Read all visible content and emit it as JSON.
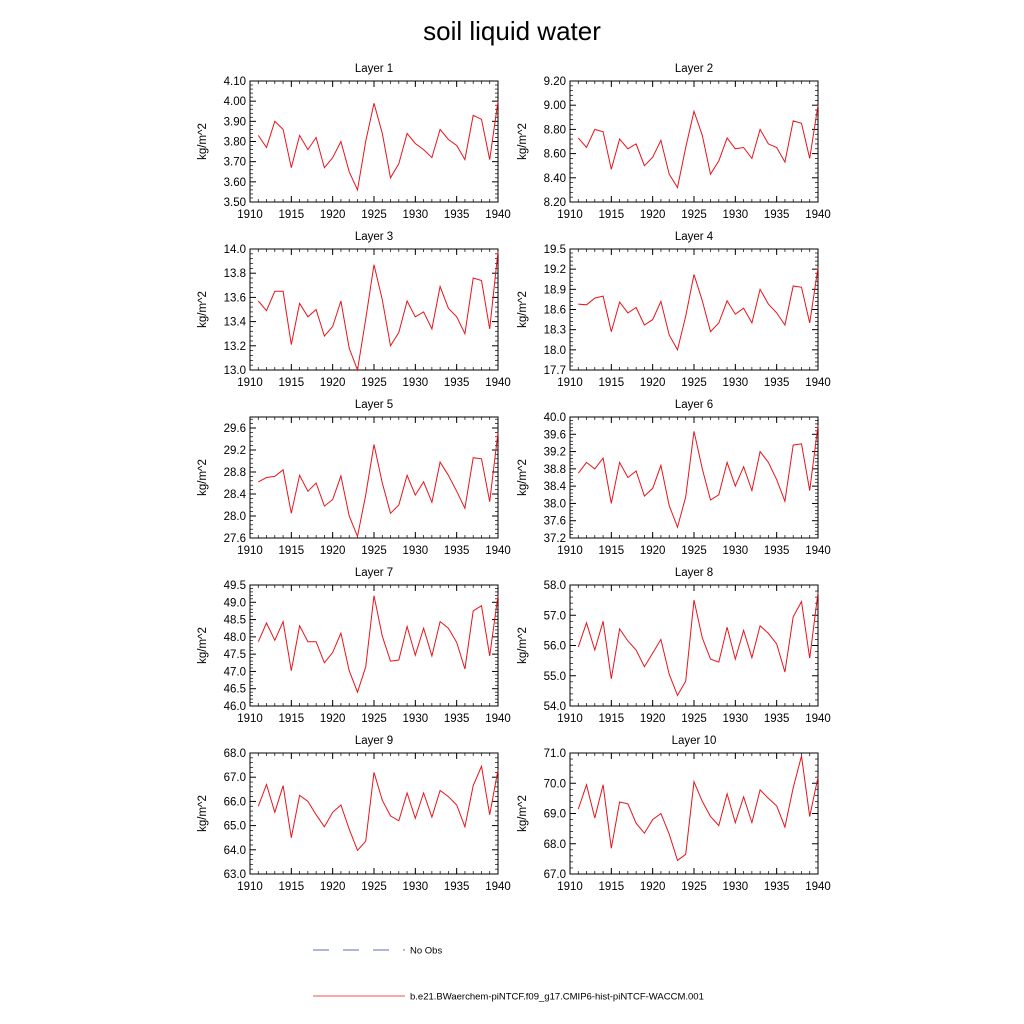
{
  "title": "soil liquid water",
  "legend": {
    "no_obs_label": "No Obs",
    "no_obs_color": "#2b3fa8",
    "model_label": "b.e21.BWaerchem-piNTCF.f09_g17.CMIP6-hist-piNTCF-WACCM.001",
    "model_color": "#e8141c"
  },
  "chart_data": [
    {
      "type": "line",
      "title": "Layer 1",
      "ylabel": "kg/m^2",
      "xlim": [
        1910,
        1940
      ],
      "ylim": [
        3.5,
        4.1
      ],
      "xticks": [
        1910,
        1915,
        1920,
        1925,
        1930,
        1935,
        1940
      ],
      "yticks": [
        "3.50",
        "3.60",
        "3.70",
        "3.80",
        "3.90",
        "4.00",
        "4.10"
      ],
      "x": [
        1911,
        1912,
        1913,
        1914,
        1915,
        1916,
        1917,
        1918,
        1919,
        1920,
        1921,
        1922,
        1923,
        1924,
        1925,
        1926,
        1927,
        1928,
        1929,
        1930,
        1931,
        1932,
        1933,
        1934,
        1935,
        1936,
        1937,
        1938,
        1939,
        1940
      ],
      "values": [
        3.83,
        3.77,
        3.9,
        3.86,
        3.67,
        3.83,
        3.76,
        3.82,
        3.67,
        3.72,
        3.8,
        3.65,
        3.56,
        3.8,
        3.99,
        3.84,
        3.62,
        3.69,
        3.84,
        3.79,
        3.76,
        3.72,
        3.86,
        3.81,
        3.78,
        3.71,
        3.93,
        3.91,
        3.71,
        4.0
      ]
    },
    {
      "type": "line",
      "title": "Layer 2",
      "ylabel": "kg/m^2",
      "xlim": [
        1910,
        1940
      ],
      "ylim": [
        8.2,
        9.2
      ],
      "xticks": [
        1910,
        1915,
        1920,
        1925,
        1930,
        1935,
        1940
      ],
      "yticks": [
        "8.20",
        "8.40",
        "8.60",
        "8.80",
        "9.00",
        "9.20"
      ],
      "x": [
        1911,
        1912,
        1913,
        1914,
        1915,
        1916,
        1917,
        1918,
        1919,
        1920,
        1921,
        1922,
        1923,
        1924,
        1925,
        1926,
        1927,
        1928,
        1929,
        1930,
        1931,
        1932,
        1933,
        1934,
        1935,
        1936,
        1937,
        1938,
        1939,
        1940
      ],
      "values": [
        8.73,
        8.65,
        8.8,
        8.78,
        8.47,
        8.72,
        8.64,
        8.68,
        8.5,
        8.57,
        8.71,
        8.43,
        8.32,
        8.65,
        8.95,
        8.75,
        8.43,
        8.54,
        8.73,
        8.64,
        8.65,
        8.56,
        8.8,
        8.68,
        8.65,
        8.53,
        8.87,
        8.85,
        8.56,
        9.0
      ]
    },
    {
      "type": "line",
      "title": "Layer 3",
      "ylabel": "kg/m^2",
      "xlim": [
        1910,
        1940
      ],
      "ylim": [
        13.0,
        14.0
      ],
      "xticks": [
        1910,
        1915,
        1920,
        1925,
        1930,
        1935,
        1940
      ],
      "yticks": [
        "13.0",
        "13.2",
        "13.4",
        "13.6",
        "13.8",
        "14.0"
      ],
      "x": [
        1911,
        1912,
        1913,
        1914,
        1915,
        1916,
        1917,
        1918,
        1919,
        1920,
        1921,
        1922,
        1923,
        1924,
        1925,
        1926,
        1927,
        1928,
        1929,
        1930,
        1931,
        1932,
        1933,
        1934,
        1935,
        1936,
        1937,
        1938,
        1939,
        1940
      ],
      "values": [
        13.57,
        13.49,
        13.65,
        13.65,
        13.21,
        13.55,
        13.44,
        13.5,
        13.28,
        13.36,
        13.57,
        13.18,
        13.0,
        13.42,
        13.87,
        13.58,
        13.2,
        13.31,
        13.57,
        13.44,
        13.48,
        13.34,
        13.69,
        13.51,
        13.44,
        13.3,
        13.76,
        13.74,
        13.34,
        13.98
      ]
    },
    {
      "type": "line",
      "title": "Layer 4",
      "ylabel": "kg/m^2",
      "xlim": [
        1910,
        1940
      ],
      "ylim": [
        17.7,
        19.5
      ],
      "xticks": [
        1910,
        1915,
        1920,
        1925,
        1930,
        1935,
        1940
      ],
      "yticks": [
        "17.7",
        "18.0",
        "18.3",
        "18.6",
        "18.9",
        "19.2",
        "19.5"
      ],
      "x": [
        1911,
        1912,
        1913,
        1914,
        1915,
        1916,
        1917,
        1918,
        1919,
        1920,
        1921,
        1922,
        1923,
        1924,
        1925,
        1926,
        1927,
        1928,
        1929,
        1930,
        1931,
        1932,
        1933,
        1934,
        1935,
        1936,
        1937,
        1938,
        1939,
        1940
      ],
      "values": [
        18.68,
        18.67,
        18.77,
        18.8,
        18.27,
        18.71,
        18.55,
        18.63,
        18.37,
        18.45,
        18.72,
        18.22,
        18.0,
        18.5,
        19.12,
        18.73,
        18.27,
        18.4,
        18.73,
        18.53,
        18.62,
        18.4,
        18.9,
        18.68,
        18.55,
        18.37,
        18.95,
        18.93,
        18.4,
        19.22
      ]
    },
    {
      "type": "line",
      "title": "Layer 5",
      "ylabel": "kg/m^2",
      "xlim": [
        1910,
        1940
      ],
      "ylim": [
        27.6,
        29.8
      ],
      "xticks": [
        1910,
        1915,
        1920,
        1925,
        1930,
        1935,
        1940
      ],
      "yticks": [
        "27.6",
        "28.0",
        "28.4",
        "28.8",
        "29.2",
        "29.6"
      ],
      "x": [
        1911,
        1912,
        1913,
        1914,
        1915,
        1916,
        1917,
        1918,
        1919,
        1920,
        1921,
        1922,
        1923,
        1924,
        1925,
        1926,
        1927,
        1928,
        1929,
        1930,
        1931,
        1932,
        1933,
        1934,
        1935,
        1936,
        1937,
        1938,
        1939,
        1940
      ],
      "values": [
        28.62,
        28.7,
        28.72,
        28.84,
        28.05,
        28.74,
        28.45,
        28.6,
        28.18,
        28.3,
        28.73,
        28.0,
        27.63,
        28.38,
        29.3,
        28.6,
        28.05,
        28.2,
        28.74,
        28.38,
        28.62,
        28.25,
        28.98,
        28.74,
        28.45,
        28.14,
        29.06,
        29.04,
        28.26,
        29.52
      ]
    },
    {
      "type": "line",
      "title": "Layer 6",
      "ylabel": "kg/m^2",
      "xlim": [
        1910,
        1940
      ],
      "ylim": [
        37.2,
        40.0
      ],
      "xticks": [
        1910,
        1915,
        1920,
        1925,
        1930,
        1935,
        1940
      ],
      "yticks": [
        "37.2",
        "37.6",
        "38.0",
        "38.4",
        "38.8",
        "39.2",
        "39.6",
        "40.0"
      ],
      "x": [
        1911,
        1912,
        1913,
        1914,
        1915,
        1916,
        1917,
        1918,
        1919,
        1920,
        1921,
        1922,
        1923,
        1924,
        1925,
        1926,
        1927,
        1928,
        1929,
        1930,
        1931,
        1932,
        1933,
        1934,
        1935,
        1936,
        1937,
        1938,
        1939,
        1940
      ],
      "values": [
        38.7,
        38.95,
        38.8,
        39.05,
        38.0,
        38.95,
        38.6,
        38.75,
        38.17,
        38.35,
        38.88,
        37.95,
        37.45,
        38.15,
        39.67,
        38.8,
        38.08,
        38.2,
        38.95,
        38.4,
        38.85,
        38.3,
        39.2,
        38.95,
        38.55,
        38.05,
        39.35,
        39.38,
        38.3,
        39.8
      ]
    },
    {
      "type": "line",
      "title": "Layer 7",
      "ylabel": "kg/m^2",
      "xlim": [
        1910,
        1940
      ],
      "ylim": [
        46.0,
        49.5
      ],
      "xticks": [
        1910,
        1915,
        1920,
        1925,
        1930,
        1935,
        1940
      ],
      "yticks": [
        "46.0",
        "46.5",
        "47.0",
        "47.5",
        "48.0",
        "48.5",
        "49.0",
        "49.5"
      ],
      "x": [
        1911,
        1912,
        1913,
        1914,
        1915,
        1916,
        1917,
        1918,
        1919,
        1920,
        1921,
        1922,
        1923,
        1924,
        1925,
        1926,
        1927,
        1928,
        1929,
        1930,
        1931,
        1932,
        1933,
        1934,
        1935,
        1936,
        1937,
        1938,
        1939,
        1940
      ],
      "values": [
        47.86,
        48.4,
        47.9,
        48.44,
        47.02,
        48.32,
        47.86,
        47.86,
        47.25,
        47.55,
        48.11,
        47.02,
        46.4,
        47.13,
        49.19,
        48.02,
        47.3,
        47.33,
        48.3,
        47.47,
        48.25,
        47.45,
        48.44,
        48.25,
        47.84,
        47.07,
        48.75,
        48.9,
        47.45,
        49.2
      ]
    },
    {
      "type": "line",
      "title": "Layer 8",
      "ylabel": "kg/m^2",
      "xlim": [
        1910,
        1940
      ],
      "ylim": [
        54.0,
        58.0
      ],
      "xticks": [
        1910,
        1915,
        1920,
        1925,
        1930,
        1935,
        1940
      ],
      "yticks": [
        "54.0",
        "55.0",
        "56.0",
        "57.0",
        "58.0"
      ],
      "x": [
        1911,
        1912,
        1913,
        1914,
        1915,
        1916,
        1917,
        1918,
        1919,
        1920,
        1921,
        1922,
        1923,
        1924,
        1925,
        1926,
        1927,
        1928,
        1929,
        1930,
        1931,
        1932,
        1933,
        1934,
        1935,
        1936,
        1937,
        1938,
        1939,
        1940
      ],
      "values": [
        55.95,
        56.75,
        55.85,
        56.8,
        54.9,
        56.55,
        56.15,
        55.85,
        55.3,
        55.75,
        56.2,
        55.05,
        54.35,
        54.82,
        57.5,
        56.25,
        55.55,
        55.45,
        56.6,
        55.55,
        56.5,
        55.6,
        56.65,
        56.4,
        56.05,
        55.12,
        56.95,
        57.45,
        55.58,
        57.75
      ]
    },
    {
      "type": "line",
      "title": "Layer 9",
      "ylabel": "kg/m^2",
      "xlim": [
        1910,
        1940
      ],
      "ylim": [
        63.0,
        68.0
      ],
      "xticks": [
        1910,
        1915,
        1920,
        1925,
        1930,
        1935,
        1940
      ],
      "yticks": [
        "63.0",
        "64.0",
        "65.0",
        "66.0",
        "67.0",
        "68.0"
      ],
      "x": [
        1911,
        1912,
        1913,
        1914,
        1915,
        1916,
        1917,
        1918,
        1919,
        1920,
        1921,
        1922,
        1923,
        1924,
        1925,
        1926,
        1927,
        1928,
        1929,
        1930,
        1931,
        1932,
        1933,
        1934,
        1935,
        1936,
        1937,
        1938,
        1939,
        1940
      ],
      "values": [
        65.8,
        66.7,
        65.55,
        66.65,
        64.5,
        66.25,
        66.0,
        65.45,
        64.95,
        65.55,
        65.85,
        64.85,
        63.98,
        64.35,
        67.2,
        66.05,
        65.4,
        65.2,
        66.35,
        65.3,
        66.35,
        65.35,
        66.45,
        66.2,
        65.85,
        64.95,
        66.65,
        67.45,
        65.45,
        67.3
      ]
    },
    {
      "type": "line",
      "title": "Layer 10",
      "ylabel": "kg/m^2",
      "xlim": [
        1910,
        1940
      ],
      "ylim": [
        67.0,
        71.0
      ],
      "xticks": [
        1910,
        1915,
        1920,
        1925,
        1930,
        1935,
        1940
      ],
      "yticks": [
        "67.0",
        "68.0",
        "69.0",
        "70.0",
        "71.0"
      ],
      "x": [
        1911,
        1912,
        1913,
        1914,
        1915,
        1916,
        1917,
        1918,
        1919,
        1920,
        1921,
        1922,
        1923,
        1924,
        1925,
        1926,
        1927,
        1928,
        1929,
        1930,
        1931,
        1932,
        1933,
        1934,
        1935,
        1936,
        1937,
        1938,
        1939,
        1940
      ],
      "values": [
        69.15,
        69.95,
        68.85,
        69.95,
        67.85,
        69.38,
        69.32,
        68.68,
        68.35,
        68.8,
        69.0,
        68.32,
        67.45,
        67.65,
        70.05,
        69.4,
        68.9,
        68.6,
        69.65,
        68.7,
        69.55,
        68.7,
        69.78,
        69.5,
        69.25,
        68.55,
        69.85,
        70.9,
        68.9,
        70.2
      ]
    }
  ]
}
